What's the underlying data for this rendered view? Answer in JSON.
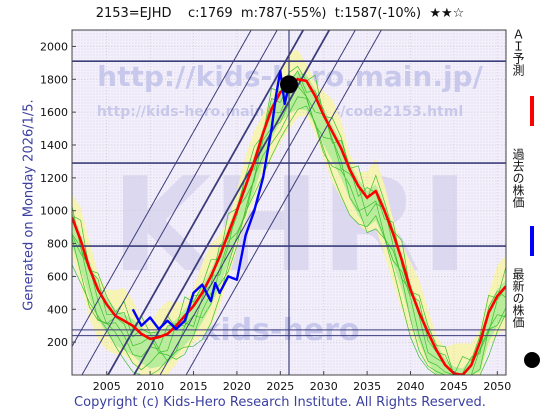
{
  "header": {
    "code": "2153=EJHD",
    "current": "c:1769",
    "mid": "m:787(-55%)",
    "target": "t:1587(-10%)",
    "stars": "★★☆"
  },
  "side_text": "Generated on Monday 2026/1/5.",
  "footer": "Copyright (c) Kids-Hero Research Institute. All Rights Reserved.",
  "watermark": {
    "url1": "http://kids-hero.main.jp/",
    "url2": "http://kids-hero.main.jp/stocks/code2153.html",
    "url3": "kids-hero",
    "big": "KHRI"
  },
  "legend": [
    {
      "label": "ＡＩ予測",
      "color": "#ff0000"
    },
    {
      "label": "過去の株価",
      "color": "#0000ff"
    },
    {
      "label": "最新の株価",
      "color": "#000000"
    }
  ],
  "chart_data": {
    "type": "line",
    "xlim": [
      2001,
      2051
    ],
    "ylim": [
      0,
      2100
    ],
    "x_ticks": [
      2005,
      2010,
      2015,
      2020,
      2025,
      2030,
      2035,
      2040,
      2045,
      2050
    ],
    "y_ticks": [
      200,
      400,
      600,
      800,
      1000,
      1200,
      1400,
      1600,
      1800,
      2000
    ],
    "grid": true,
    "horizontal_levels": [
      1910,
      1290,
      785,
      275,
      240
    ],
    "current_marker": {
      "x": 2026.0,
      "y": 1769
    },
    "vertical_marker_x": 2026.0,
    "series": [
      {
        "color": "#ff0000",
        "points": [
          [
            2001,
            960
          ],
          [
            2002,
            820
          ],
          [
            2003,
            650
          ],
          [
            2004,
            520
          ],
          [
            2005,
            430
          ],
          [
            2006,
            360
          ],
          [
            2007,
            330
          ],
          [
            2008,
            300
          ],
          [
            2009,
            250
          ],
          [
            2010,
            220
          ],
          [
            2011,
            230
          ],
          [
            2012,
            250
          ],
          [
            2013,
            300
          ],
          [
            2014,
            360
          ],
          [
            2015,
            420
          ],
          [
            2016,
            500
          ],
          [
            2017,
            600
          ],
          [
            2018,
            720
          ],
          [
            2019,
            860
          ],
          [
            2020,
            1000
          ],
          [
            2021,
            1150
          ],
          [
            2022,
            1300
          ],
          [
            2023,
            1470
          ],
          [
            2024,
            1620
          ],
          [
            2025,
            1720
          ],
          [
            2026,
            1769
          ],
          [
            2027,
            1800
          ],
          [
            2028,
            1790
          ],
          [
            2029,
            1700
          ],
          [
            2030,
            1580
          ],
          [
            2031,
            1480
          ],
          [
            2032,
            1380
          ],
          [
            2033,
            1250
          ],
          [
            2034,
            1150
          ],
          [
            2035,
            1080
          ],
          [
            2036,
            1120
          ],
          [
            2037,
            1000
          ],
          [
            2038,
            860
          ],
          [
            2039,
            700
          ],
          [
            2040,
            520
          ],
          [
            2041,
            380
          ],
          [
            2042,
            260
          ],
          [
            2043,
            150
          ],
          [
            2044,
            60
          ],
          [
            2045,
            10
          ],
          [
            2046,
            0
          ],
          [
            2047,
            60
          ],
          [
            2048,
            200
          ],
          [
            2049,
            380
          ],
          [
            2050,
            480
          ],
          [
            2051,
            540
          ]
        ]
      },
      {
        "color": "#0000ff",
        "points": [
          [
            2008,
            400
          ],
          [
            2009,
            300
          ],
          [
            2010,
            350
          ],
          [
            2011,
            280
          ],
          [
            2012,
            330
          ],
          [
            2013,
            280
          ],
          [
            2014,
            330
          ],
          [
            2015,
            500
          ],
          [
            2016,
            550
          ],
          [
            2017,
            450
          ],
          [
            2017.5,
            560
          ],
          [
            2018,
            500
          ],
          [
            2019,
            600
          ],
          [
            2020,
            580
          ],
          [
            2021,
            850
          ],
          [
            2022,
            1000
          ],
          [
            2023,
            1200
          ],
          [
            2024,
            1500
          ],
          [
            2024.5,
            1700
          ],
          [
            2025,
            1850
          ],
          [
            2025.5,
            1650
          ],
          [
            2026,
            1769
          ]
        ]
      }
    ]
  }
}
